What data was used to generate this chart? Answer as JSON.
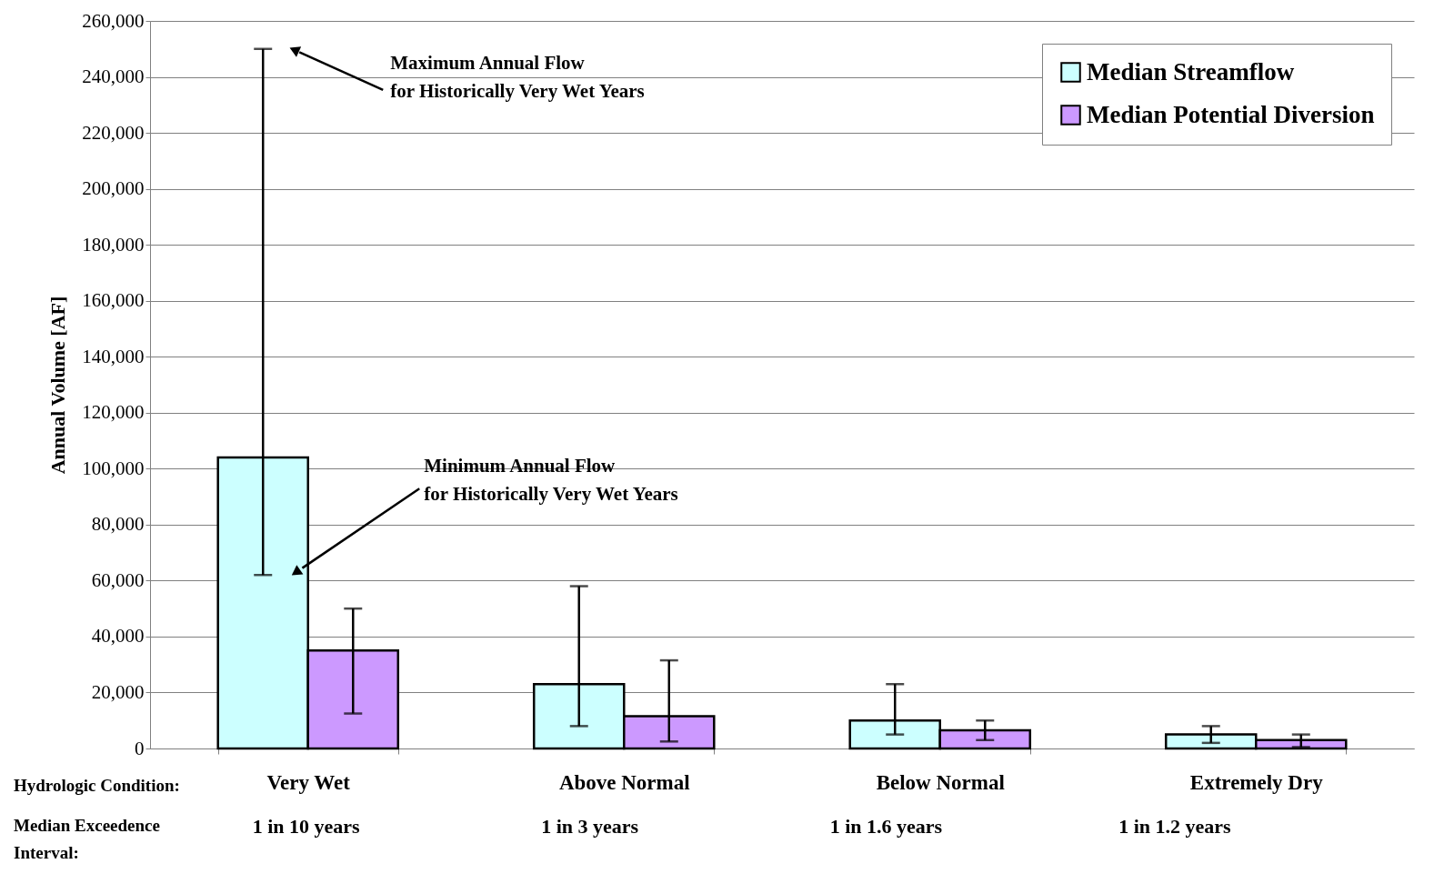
{
  "chart_data": {
    "type": "bar",
    "ylabel": "Annual Volume [AF]",
    "categories": [
      "Very Wet",
      "Above Normal",
      "Below Normal",
      "Extremely Dry"
    ],
    "series": [
      {
        "name": "Median Streamflow",
        "color": "#ccffff",
        "values": [
          104000,
          23000,
          10000,
          5000
        ],
        "errors": [
          [
            62000,
            250000
          ],
          [
            8000,
            58000
          ],
          [
            5000,
            23000
          ],
          [
            2000,
            8000
          ]
        ]
      },
      {
        "name": "Median Potential Diversion",
        "color": "#cc99ff",
        "values": [
          35000,
          11500,
          6500,
          3000
        ],
        "errors": [
          [
            12500,
            50000
          ],
          [
            2500,
            31500
          ],
          [
            3000,
            10000
          ],
          [
            500,
            5000
          ]
        ]
      }
    ],
    "ylim": [
      0,
      260000
    ],
    "yticks": [
      0,
      {
        "value": 20000,
        "label": "20,000"
      },
      {
        "value": 40000,
        "label": "40,000"
      },
      {
        "value": 60000,
        "label": "60,000"
      },
      {
        "value": 80000,
        "label": "80,000"
      },
      {
        "value": 100000,
        "label": "100,000"
      },
      {
        "value": 120000,
        "label": "120,000"
      },
      {
        "value": 140000,
        "label": "140,000"
      },
      {
        "value": 160000,
        "label": "160,000"
      },
      {
        "value": 180000,
        "label": "180,000"
      },
      {
        "value": 200000,
        "label": "200,000"
      },
      {
        "value": 220000,
        "label": "220,000"
      },
      {
        "value": 240000,
        "label": "240,000"
      },
      {
        "value": 260000,
        "label": "260,000"
      }
    ],
    "grid": "y",
    "legend": "top right",
    "annotations": [
      "Hydrologic Condition:",
      "Median Exceedence Interval:",
      "1 in 10 years",
      "1 in 3 years",
      "1 in 1.6 years",
      "1 in 1.2 years",
      "Maximum Annual Flow\nfor Historically Very Wet Years",
      "Minimum Annual Flow\nfor Historically Very Wet Years"
    ]
  }
}
